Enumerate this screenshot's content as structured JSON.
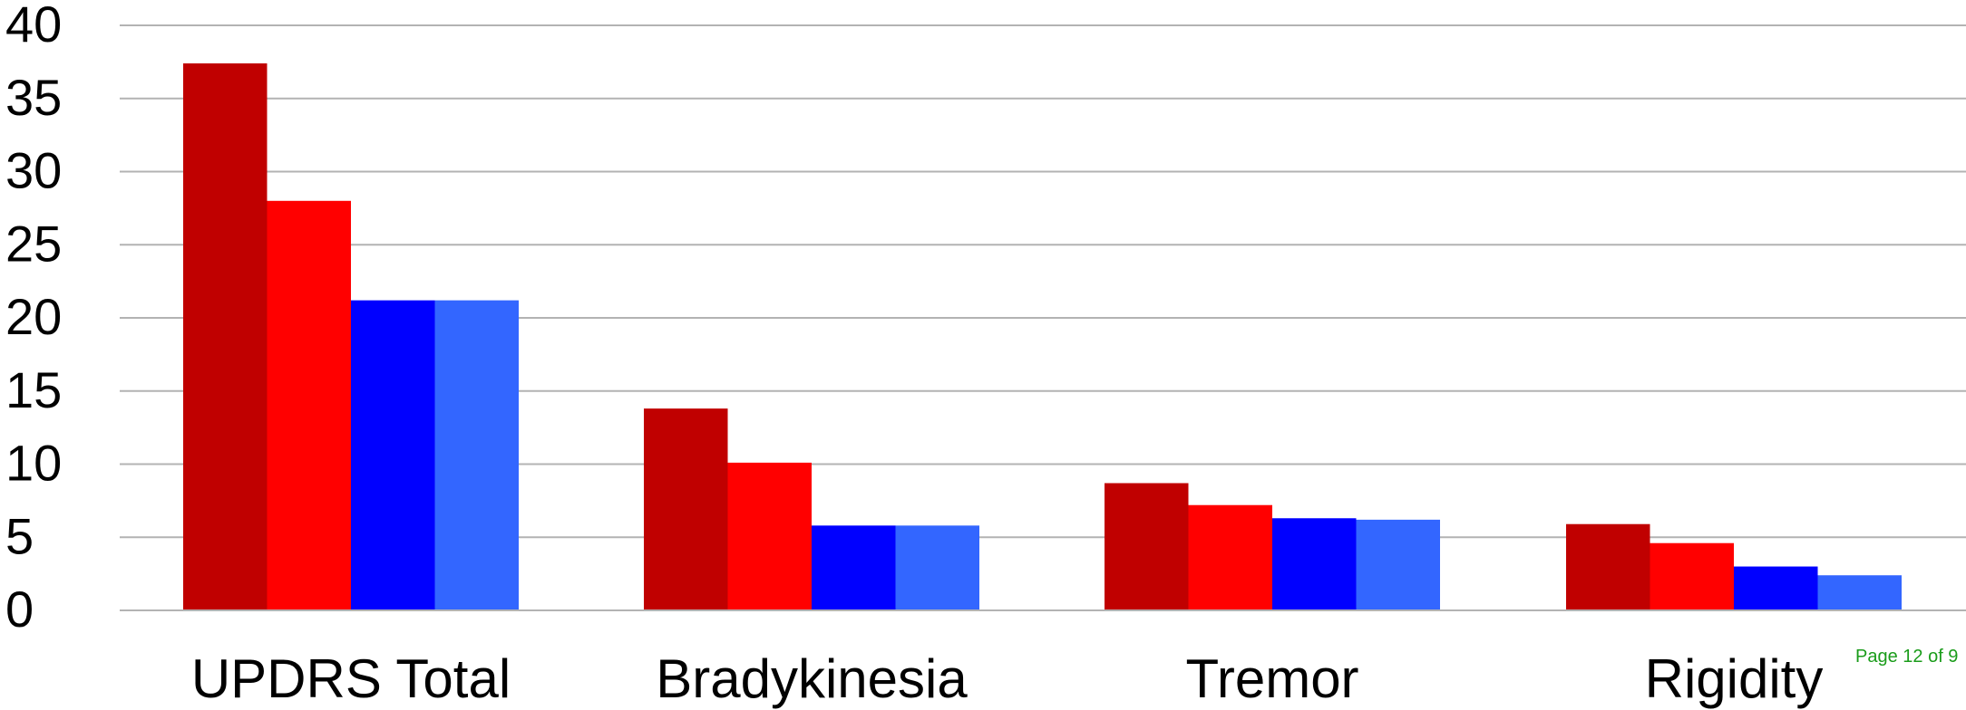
{
  "chart_data": {
    "type": "bar",
    "title": "",
    "xlabel": "",
    "ylabel": "",
    "categories": [
      "UPDRS Total",
      "Bradykinesia",
      "Tremor",
      "Rigidity"
    ],
    "ylim": [
      0,
      40
    ],
    "yticks": [
      0,
      5,
      10,
      15,
      20,
      25,
      30,
      35,
      40
    ],
    "grid": true,
    "legend": "none",
    "series": [
      {
        "color": "#c00000",
        "values": [
          37.4,
          13.8,
          8.7,
          5.9
        ]
      },
      {
        "color": "#ff0000",
        "values": [
          28.0,
          10.1,
          7.2,
          4.6
        ]
      },
      {
        "color": "#0000ff",
        "values": [
          21.2,
          5.8,
          6.3,
          3.0
        ]
      },
      {
        "color": "#3366ff",
        "values": [
          21.2,
          5.8,
          6.2,
          2.4
        ]
      }
    ]
  },
  "footer": {
    "page_label": "Page 12 of 9"
  }
}
